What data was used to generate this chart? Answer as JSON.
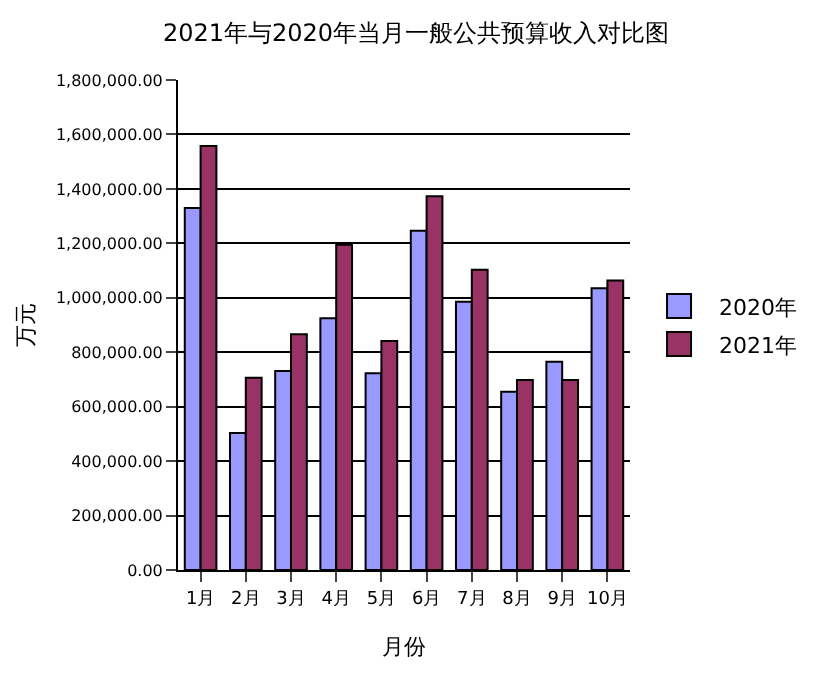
{
  "chart_data": {
    "type": "bar",
    "title": "2021年与2020年当月一般公共预算收入对比图",
    "xlabel": "月份",
    "ylabel": "万元",
    "categories": [
      "1月",
      "2月",
      "3月",
      "4月",
      "5月",
      "6月",
      "7月",
      "8月",
      "9月",
      "10月"
    ],
    "series": [
      {
        "name": "2020年",
        "color": "#9999ff",
        "values": [
          1330000,
          503000,
          731000,
          925000,
          723000,
          1246000,
          985000,
          655000,
          765000,
          1035000
        ]
      },
      {
        "name": "2021年",
        "color": "#993366",
        "values": [
          1558000,
          706000,
          866000,
          1195000,
          841000,
          1373000,
          1103000,
          698000,
          698000,
          1063000
        ]
      }
    ],
    "ylim": [
      0,
      1800000
    ],
    "yticks": [
      {
        "value": 0,
        "label": "0.00"
      },
      {
        "value": 200000,
        "label": "200,000.00"
      },
      {
        "value": 400000,
        "label": "400,000.00"
      },
      {
        "value": 600000,
        "label": "600,000.00"
      },
      {
        "value": 800000,
        "label": "800,000.00"
      },
      {
        "value": 1000000,
        "label": "1,000,000.00"
      },
      {
        "value": 1200000,
        "label": "1,200,000.00"
      },
      {
        "value": 1400000,
        "label": "1,400,000.00"
      },
      {
        "value": 1600000,
        "label": "1,600,000.00"
      },
      {
        "value": 1800000,
        "label": "1,800,000.00"
      }
    ],
    "grid": "y",
    "legend": "right"
  }
}
